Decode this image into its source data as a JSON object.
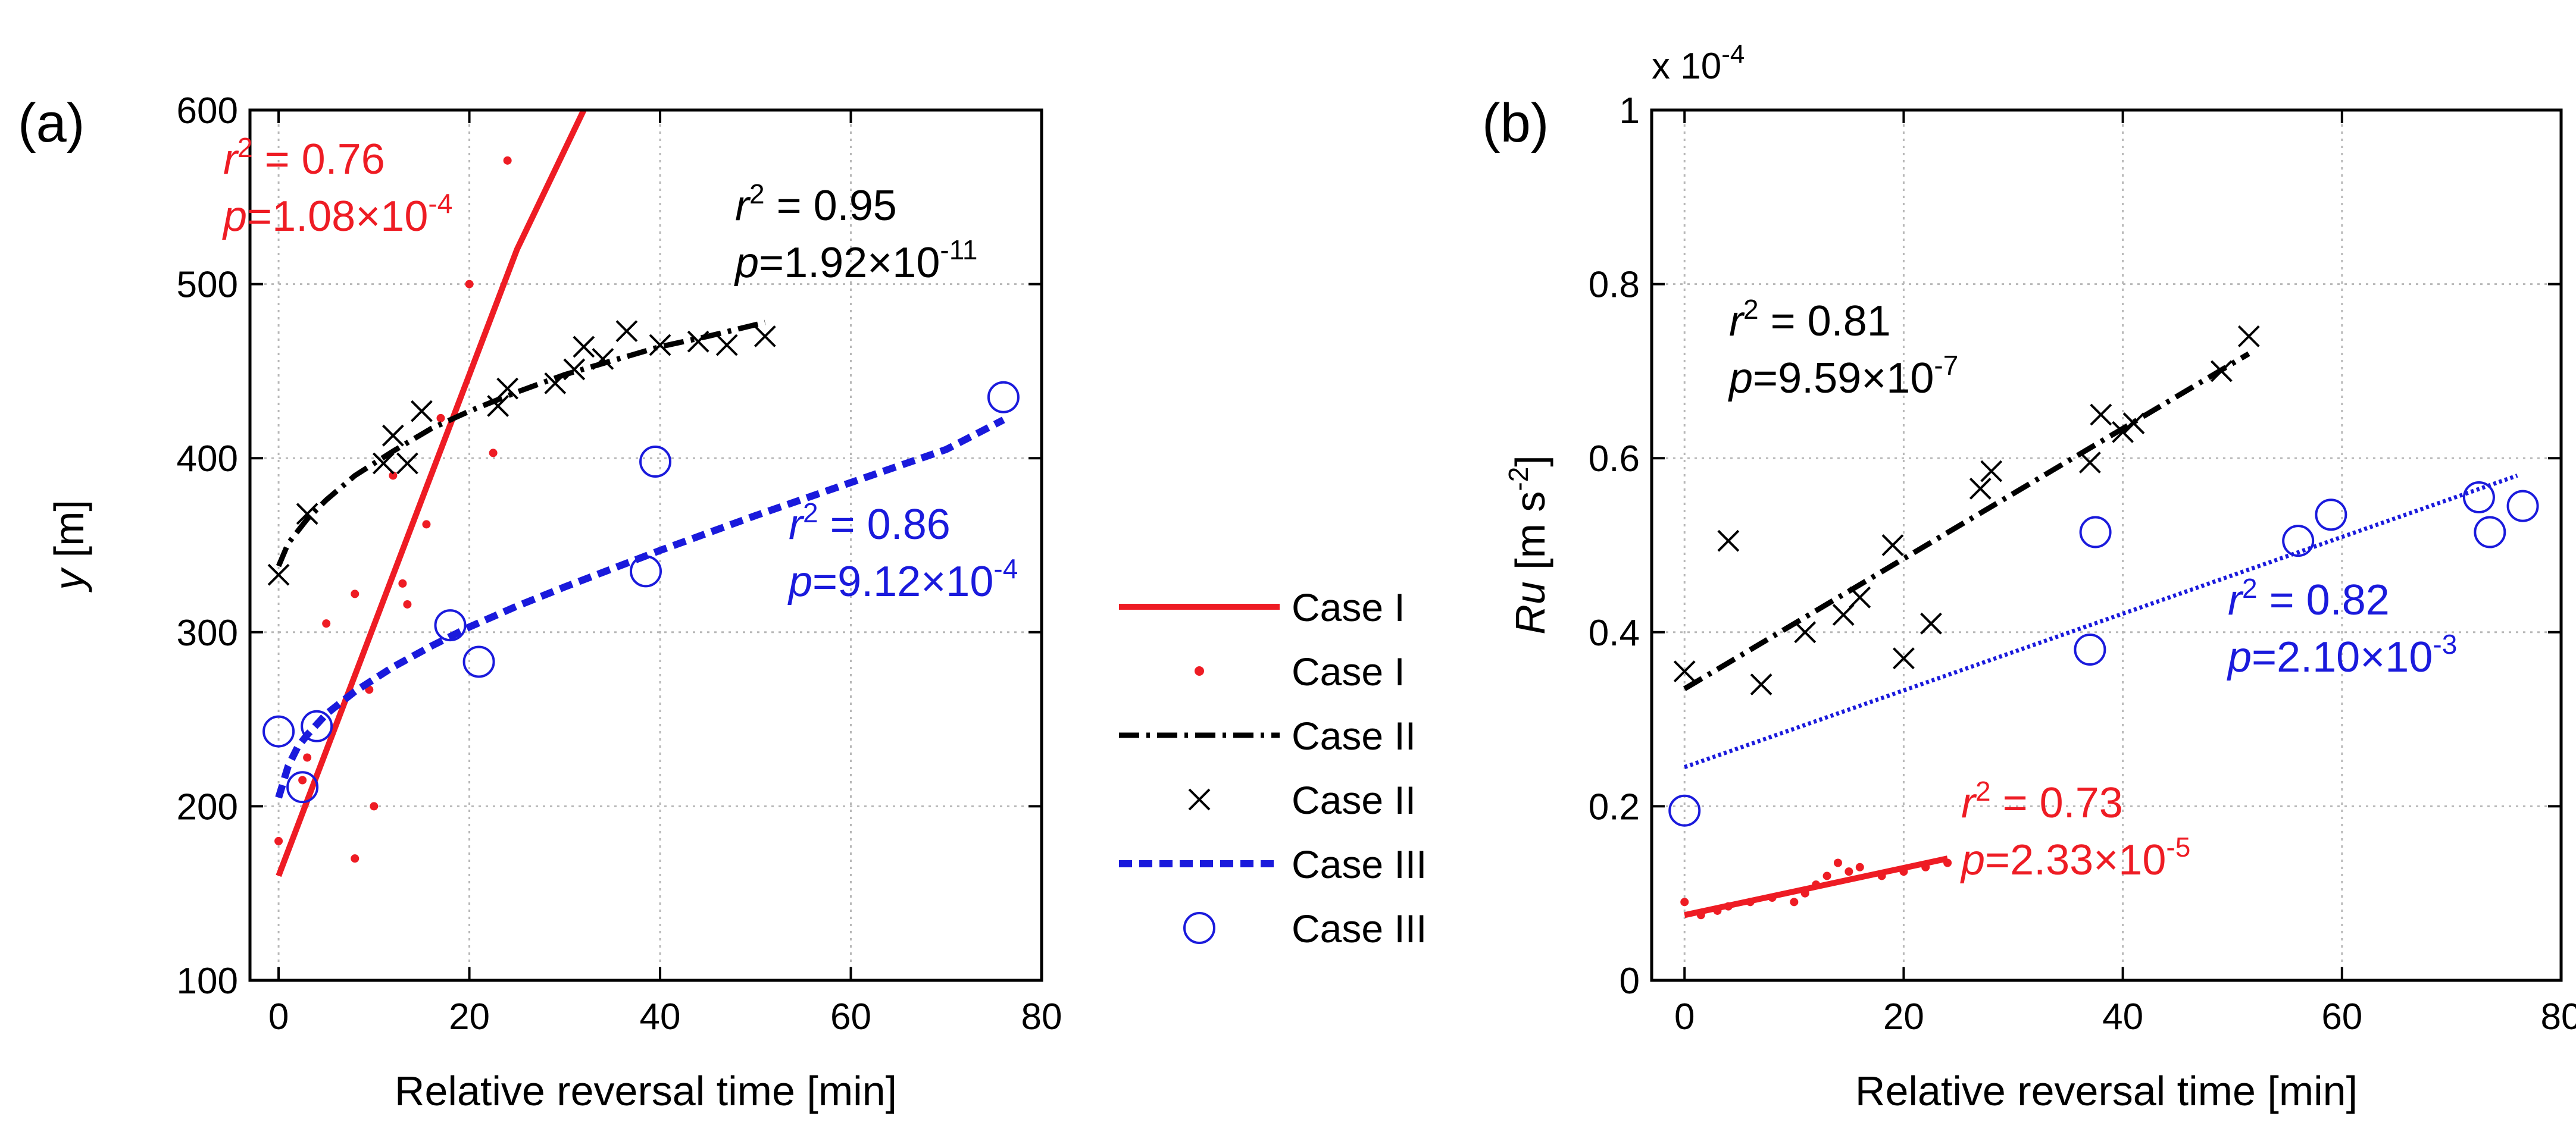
{
  "colors": {
    "case1": "#ee1c24",
    "case2": "#000000",
    "case3": "#1a1adc",
    "grid": "#b8b8b8"
  },
  "legend": [
    {
      "label": "Case I",
      "style": "line",
      "series": "case1"
    },
    {
      "label": "Case I",
      "style": "dot",
      "series": "case1"
    },
    {
      "label": "Case II",
      "style": "dashdot",
      "series": "case2"
    },
    {
      "label": "Case II",
      "style": "cross",
      "series": "case2"
    },
    {
      "label": "Case III",
      "style": "dash",
      "series": "case3"
    },
    {
      "label": "Case III",
      "style": "circle",
      "series": "case3"
    }
  ],
  "chart_data": [
    {
      "type": "scatter",
      "panel_label": "(a)",
      "xlabel": "Relative reversal time [min]",
      "ylabel": "y [m]",
      "xlim": [
        -3,
        80
      ],
      "ylim": [
        100,
        600
      ],
      "xticks": [
        0,
        20,
        40,
        60,
        80
      ],
      "yticks": [
        100,
        200,
        300,
        400,
        500,
        600
      ],
      "grid": true,
      "series": [
        {
          "name": "Case I",
          "key": "case1",
          "marker": "dot",
          "points": [
            [
              0,
              180
            ],
            [
              2.5,
              215
            ],
            [
              3,
              228
            ],
            [
              5,
              305
            ],
            [
              8,
              170
            ],
            [
              8,
              322
            ],
            [
              9.5,
              267
            ],
            [
              10,
              200
            ],
            [
              12,
              390
            ],
            [
              13,
              328
            ],
            [
              13.5,
              316
            ],
            [
              15.5,
              362
            ],
            [
              17,
              423
            ],
            [
              20,
              500
            ],
            [
              22.5,
              403
            ],
            [
              24,
              571
            ]
          ],
          "fit": {
            "style": "solid",
            "x": [
              0,
              5,
              10,
              15,
              20,
              25,
              32
            ],
            "y": [
              160,
              232,
              304,
              376,
              448,
              520,
              600
            ]
          }
        },
        {
          "name": "Case II",
          "key": "case2",
          "marker": "cross",
          "points": [
            [
              0,
              333
            ],
            [
              3,
              368
            ],
            [
              11,
              397
            ],
            [
              12,
              413
            ],
            [
              13.5,
              397
            ],
            [
              15,
              427
            ],
            [
              23,
              430
            ],
            [
              24,
              440
            ],
            [
              29,
              443
            ],
            [
              31,
              451
            ],
            [
              32,
              464
            ],
            [
              34,
              457
            ],
            [
              36.5,
              473
            ],
            [
              40,
              465
            ],
            [
              44,
              467
            ],
            [
              47,
              465
            ],
            [
              51,
              470
            ]
          ],
          "fit": {
            "style": "dashdot",
            "x": [
              0,
              1,
              2,
              3,
              5,
              8,
              12,
              16,
              20,
              25,
              30,
              35,
              40,
              45,
              51
            ],
            "y": [
              338,
              351,
              358,
              365,
              376,
              390,
              404,
              417,
              427,
              438,
              448,
              456,
              464,
              470,
              478
            ]
          }
        },
        {
          "name": "Case III",
          "key": "case3",
          "marker": "circle",
          "points": [
            [
              0,
              243
            ],
            [
              2.5,
              211
            ],
            [
              4,
              246
            ],
            [
              18,
              304
            ],
            [
              21,
              283
            ],
            [
              38.5,
              335
            ],
            [
              39.5,
              398
            ],
            [
              76,
              435
            ]
          ],
          "fit": {
            "style": "dash",
            "x": [
              0,
              1,
              2,
              3,
              5,
              8,
              12,
              16,
              20,
              25,
              30,
              40,
              50,
              60,
              70,
              76
            ],
            "y": [
              205,
              223,
              234,
              241,
              253,
              266,
              280,
              292,
              303,
              315,
              326,
              347,
              367,
              386,
              405,
              422
            ]
          }
        }
      ],
      "annotations": [
        {
          "key": "case1",
          "r2": "0.76",
          "p_mant": "1.08",
          "p_exp": "-4"
        },
        {
          "key": "case2",
          "r2": "0.95",
          "p_mant": "1.92",
          "p_exp": "-11"
        },
        {
          "key": "case3",
          "r2": "0.86",
          "p_mant": "9.12",
          "p_exp": "-4"
        }
      ]
    },
    {
      "type": "scatter",
      "panel_label": "(b)",
      "xlabel": "Relative reversal time [min]",
      "ylabel": "Ru [m s-2]",
      "scale_label": "x 10-4",
      "xlim": [
        -3,
        80
      ],
      "ylim": [
        0,
        1
      ],
      "xticks": [
        0,
        20,
        40,
        60,
        80
      ],
      "yticks": [
        0,
        0.2,
        0.4,
        0.6,
        0.8,
        1
      ],
      "ytick_labels": [
        "0",
        "0.2",
        "0.4",
        "0.6",
        "0.8",
        "1"
      ],
      "grid": true,
      "series": [
        {
          "name": "Case I",
          "key": "case1",
          "marker": "dot",
          "points": [
            [
              0,
              0.09
            ],
            [
              1.5,
              0.075
            ],
            [
              3,
              0.08
            ],
            [
              4,
              0.085
            ],
            [
              6,
              0.09
            ],
            [
              8,
              0.095
            ],
            [
              10,
              0.09
            ],
            [
              11,
              0.1
            ],
            [
              12,
              0.11
            ],
            [
              13,
              0.12
            ],
            [
              14,
              0.135
            ],
            [
              15,
              0.125
            ],
            [
              16,
              0.13
            ],
            [
              18,
              0.12
            ],
            [
              20,
              0.125
            ],
            [
              22,
              0.13
            ],
            [
              24,
              0.135
            ]
          ],
          "fit": {
            "style": "solid",
            "x": [
              0,
              24
            ],
            "y": [
              0.075,
              0.14
            ]
          }
        },
        {
          "name": "Case II",
          "key": "case2",
          "marker": "cross",
          "points": [
            [
              0,
              0.355
            ],
            [
              4,
              0.505
            ],
            [
              7,
              0.34
            ],
            [
              11,
              0.4
            ],
            [
              14.5,
              0.42
            ],
            [
              16,
              0.44
            ],
            [
              19,
              0.5
            ],
            [
              20,
              0.37
            ],
            [
              22.5,
              0.41
            ],
            [
              27,
              0.565
            ],
            [
              28,
              0.585
            ],
            [
              37,
              0.595
            ],
            [
              38,
              0.65
            ],
            [
              40,
              0.63
            ],
            [
              41,
              0.64
            ],
            [
              49,
              0.7
            ],
            [
              51.5,
              0.74
            ]
          ],
          "fit": {
            "style": "dashdot",
            "x": [
              0,
              51.5
            ],
            "y": [
              0.335,
              0.72
            ]
          }
        },
        {
          "name": "Case III",
          "key": "case3",
          "marker": "circle",
          "points": [
            [
              0,
              0.195
            ],
            [
              37,
              0.38
            ],
            [
              37.5,
              0.515
            ],
            [
              56,
              0.505
            ],
            [
              59,
              0.535
            ],
            [
              72.5,
              0.555
            ],
            [
              73.5,
              0.515
            ],
            [
              76.5,
              0.545
            ]
          ],
          "fit": {
            "style": "dotted",
            "x": [
              0,
              76
            ],
            "y": [
              0.245,
              0.58
            ]
          }
        }
      ],
      "annotations": [
        {
          "key": "case1",
          "r2": "0.73",
          "p_mant": "2.33",
          "p_exp": "-5"
        },
        {
          "key": "case2",
          "r2": "0.81",
          "p_mant": "9.59",
          "p_exp": "-7"
        },
        {
          "key": "case3",
          "r2": "0.82",
          "p_mant": "2.10",
          "p_exp": "-3"
        }
      ]
    }
  ]
}
